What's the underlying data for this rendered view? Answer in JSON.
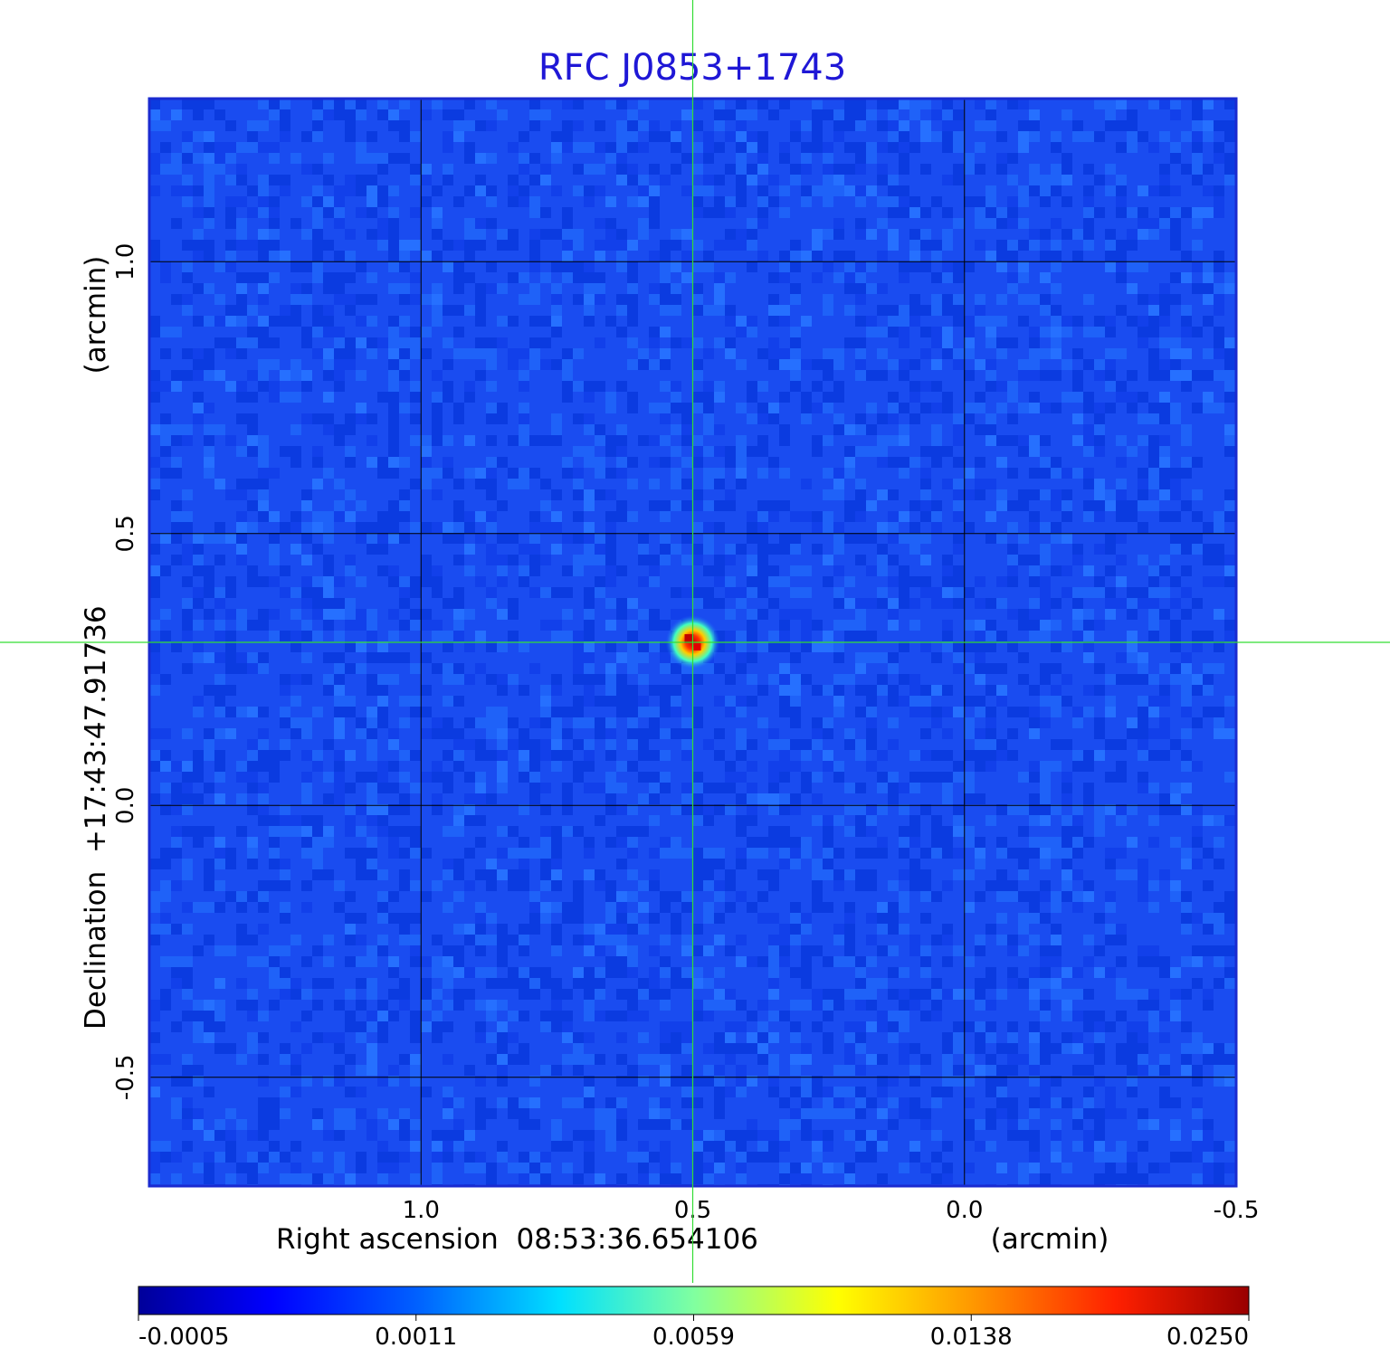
{
  "chart_data": {
    "type": "heatmap",
    "title": "RFC J0853+1743",
    "xlabel": "Right ascension  08:53:36.654106",
    "xunit": "(arcmin)",
    "ylabel": "Declination  +17:43:47.91736",
    "yunit": "(arcmin)",
    "xlim": [
      1.5,
      -0.5
    ],
    "ylim": [
      -0.7,
      1.3
    ],
    "x_ticks": [
      "1.0",
      "0.5",
      "0.0",
      "-0.5"
    ],
    "x_tick_values": [
      1.0,
      0.5,
      0.0,
      -0.5
    ],
    "y_ticks": [
      "1.0",
      "0.5",
      "0.0",
      "-0.5"
    ],
    "y_tick_values": [
      1.0,
      0.5,
      0.0,
      -0.5
    ],
    "grid": true,
    "crosshair": {
      "x": 0.5,
      "y": 0.3,
      "color": "#33dd33"
    },
    "source": {
      "x": 0.5,
      "y": 0.3,
      "peak": 0.025
    },
    "colorbar": {
      "labels": [
        "-0.0005",
        "0.0011",
        "0.0059",
        "0.0138",
        "0.0250"
      ],
      "colormap": "jet",
      "background_color": "#1a4cf0"
    }
  }
}
